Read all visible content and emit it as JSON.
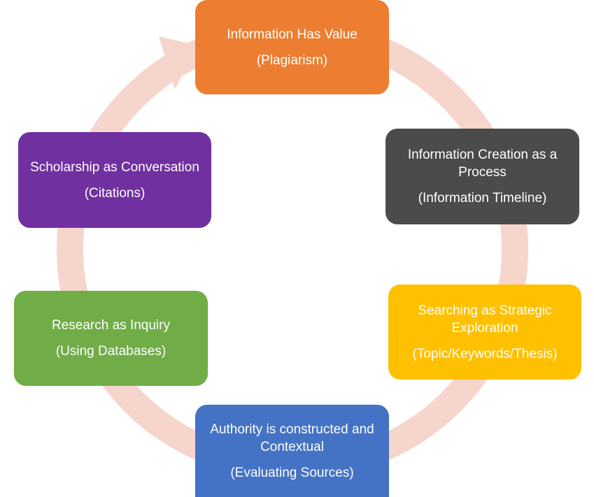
{
  "colors": {
    "ring": "#f6d5cc",
    "value": "#ed7d31",
    "creation": "#4b4b4b",
    "search": "#ffc000",
    "authority": "#4472c4",
    "inquiry": "#70ad47",
    "scholarship": "#7030a0"
  },
  "nodes": {
    "value": {
      "title": "Information Has Value",
      "sub": "(Plagiarism)"
    },
    "creation": {
      "title": "Information Creation as a Process",
      "sub": "(Information Timeline)"
    },
    "search": {
      "title": "Searching as Strategic Exploration",
      "sub": "(Topic/Keywords/Thesis)"
    },
    "authority": {
      "title": "Authority is constructed and Contextual",
      "sub": "(Evaluating Sources)"
    },
    "inquiry": {
      "title": "Research as Inquiry",
      "sub": "(Using Databases)"
    },
    "scholarship": {
      "title": "Scholarship as Conversation",
      "sub": "(Citations)"
    }
  }
}
